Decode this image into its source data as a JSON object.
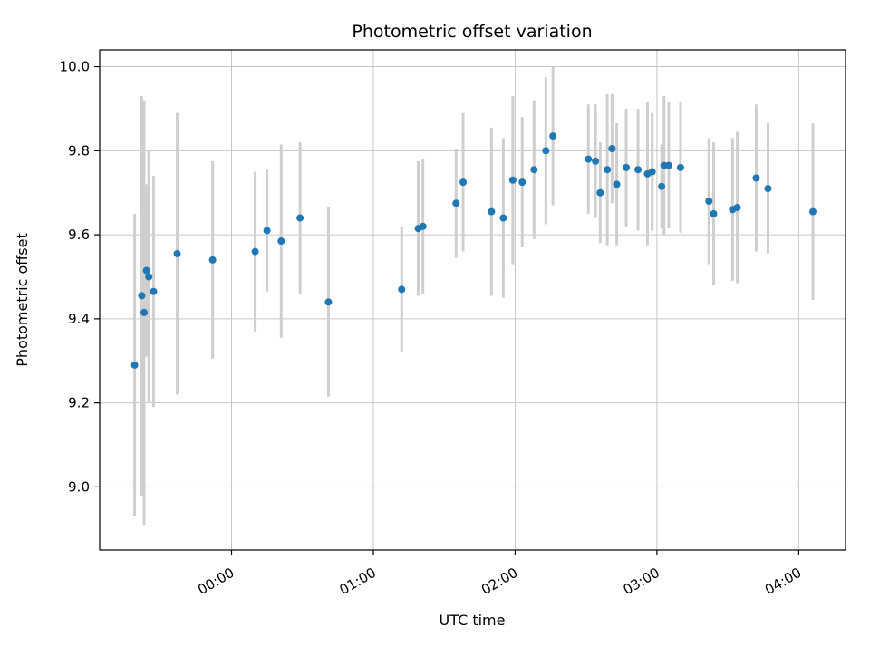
{
  "chart_data": {
    "type": "scatter",
    "title": "Photometric offset variation",
    "xlabel": "UTC time",
    "ylabel": "Photometric offset",
    "x_ticks": [
      {
        "label": "00:00",
        "hour": 0
      },
      {
        "label": "01:00",
        "hour": 1
      },
      {
        "label": "02:00",
        "hour": 2
      },
      {
        "label": "03:00",
        "hour": 3
      },
      {
        "label": "04:00",
        "hour": 4
      }
    ],
    "y_ticks": [
      {
        "label": "9.0",
        "value": 9.0
      },
      {
        "label": "9.2",
        "value": 9.2
      },
      {
        "label": "9.4",
        "value": 9.4
      },
      {
        "label": "9.6",
        "value": 9.6
      },
      {
        "label": "9.8",
        "value": 9.8
      },
      {
        "label": "10.0",
        "value": 10.0
      }
    ],
    "xlim_hours": [
      -0.93,
      4.33
    ],
    "ylim": [
      8.85,
      10.04
    ],
    "grid": true,
    "legend": "none",
    "point_color": "#1f77b4",
    "errorbar_color": "#cfcfcf",
    "grid_color": "#c6c6c6",
    "points": [
      {
        "t": "23:19",
        "v": 9.29,
        "e": 0.36
      },
      {
        "t": "23:22",
        "v": 9.455,
        "e": 0.475
      },
      {
        "t": "23:23",
        "v": 9.415,
        "e": 0.505
      },
      {
        "t": "23:24",
        "v": 9.515,
        "e": 0.205
      },
      {
        "t": "23:25",
        "v": 9.5,
        "e": 0.3
      },
      {
        "t": "23:27",
        "v": 9.465,
        "e": 0.275
      },
      {
        "t": "23:37",
        "v": 9.555,
        "e": 0.335
      },
      {
        "t": "23:52",
        "v": 9.54,
        "e": 0.235
      },
      {
        "t": "00:10",
        "v": 9.56,
        "e": 0.19
      },
      {
        "t": "00:15",
        "v": 9.61,
        "e": 0.145
      },
      {
        "t": "00:21",
        "v": 9.585,
        "e": 0.23
      },
      {
        "t": "00:29",
        "v": 9.64,
        "e": 0.18
      },
      {
        "t": "00:41",
        "v": 9.44,
        "e": 0.225
      },
      {
        "t": "01:12",
        "v": 9.47,
        "e": 0.15
      },
      {
        "t": "01:19",
        "v": 9.615,
        "e": 0.16
      },
      {
        "t": "01:21",
        "v": 9.62,
        "e": 0.16
      },
      {
        "t": "01:35",
        "v": 9.675,
        "e": 0.13
      },
      {
        "t": "01:38",
        "v": 9.725,
        "e": 0.165
      },
      {
        "t": "01:50",
        "v": 9.655,
        "e": 0.2
      },
      {
        "t": "01:55",
        "v": 9.64,
        "e": 0.19
      },
      {
        "t": "01:59",
        "v": 9.73,
        "e": 0.2
      },
      {
        "t": "02:03",
        "v": 9.725,
        "e": 0.155
      },
      {
        "t": "02:08",
        "v": 9.755,
        "e": 0.165
      },
      {
        "t": "02:13",
        "v": 9.8,
        "e": 0.175
      },
      {
        "t": "02:16",
        "v": 9.835,
        "e": 0.165
      },
      {
        "t": "02:31",
        "v": 9.78,
        "e": 0.13
      },
      {
        "t": "02:34",
        "v": 9.775,
        "e": 0.135
      },
      {
        "t": "02:36",
        "v": 9.7,
        "e": 0.12
      },
      {
        "t": "02:39",
        "v": 9.755,
        "e": 0.18
      },
      {
        "t": "02:41",
        "v": 9.805,
        "e": 0.13
      },
      {
        "t": "02:43",
        "v": 9.72,
        "e": 0.145
      },
      {
        "t": "02:47",
        "v": 9.76,
        "e": 0.14
      },
      {
        "t": "02:52",
        "v": 9.755,
        "e": 0.145
      },
      {
        "t": "02:56",
        "v": 9.745,
        "e": 0.17
      },
      {
        "t": "02:58",
        "v": 9.75,
        "e": 0.14
      },
      {
        "t": "03:02",
        "v": 9.715,
        "e": 0.1
      },
      {
        "t": "03:03",
        "v": 9.765,
        "e": 0.165
      },
      {
        "t": "03:05",
        "v": 9.765,
        "e": 0.15
      },
      {
        "t": "03:10",
        "v": 9.76,
        "e": 0.155
      },
      {
        "t": "03:22",
        "v": 9.68,
        "e": 0.15
      },
      {
        "t": "03:24",
        "v": 9.65,
        "e": 0.17
      },
      {
        "t": "03:32",
        "v": 9.66,
        "e": 0.17
      },
      {
        "t": "03:34",
        "v": 9.665,
        "e": 0.18
      },
      {
        "t": "03:42",
        "v": 9.735,
        "e": 0.175
      },
      {
        "t": "03:47",
        "v": 9.71,
        "e": 0.155
      },
      {
        "t": "04:06",
        "v": 9.655,
        "e": 0.21
      }
    ]
  }
}
